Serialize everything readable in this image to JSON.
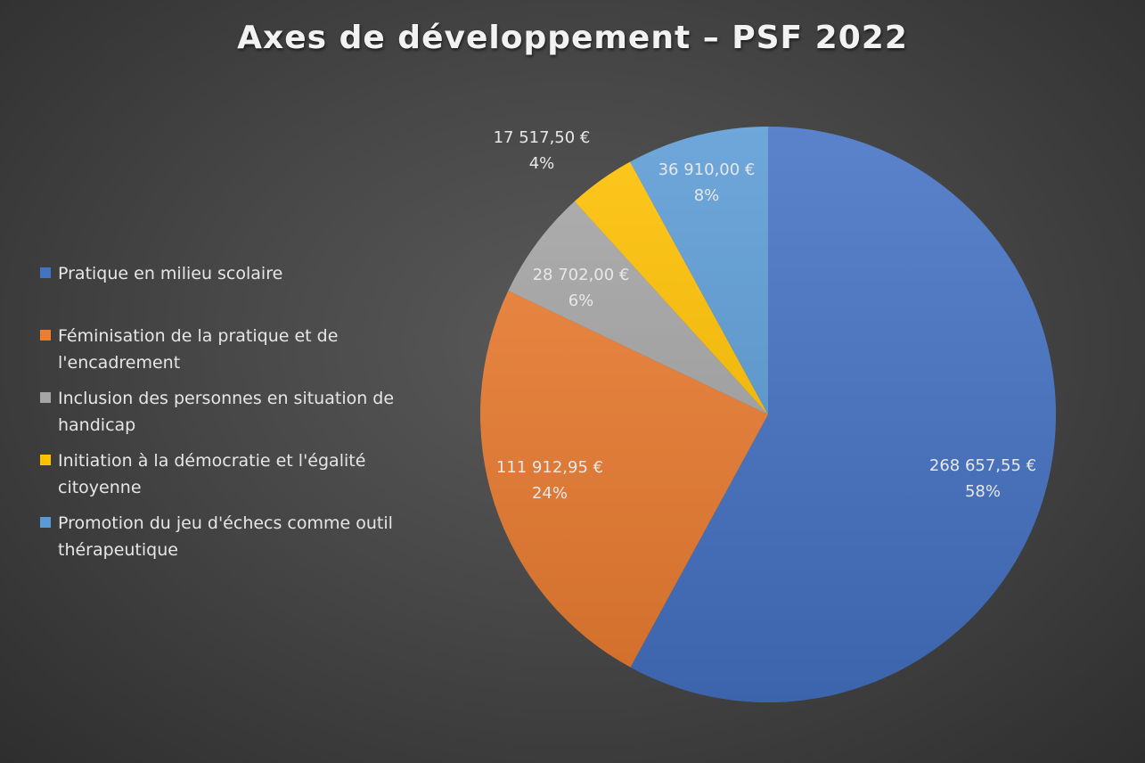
{
  "chart_data": {
    "type": "pie",
    "title": "Axes de développement – PSF 2022",
    "legend_position": "left",
    "slices": [
      {
        "name": "Pratique en milieu scolaire",
        "value": 268657.55,
        "value_label": "268 657,55 €",
        "percent_label": "58%",
        "color": "#4472c4"
      },
      {
        "name": "Féminisation de la pratique et de l'encadrement",
        "value": 111912.95,
        "value_label": "111 912,95 €",
        "percent_label": "24%",
        "color": "#ed7d31"
      },
      {
        "name": "Inclusion des personnes en situation de handicap",
        "value": 28702.0,
        "value_label": "28 702,00 €",
        "percent_label": "6%",
        "color": "#a5a5a5"
      },
      {
        "name": "Initiation à la démocratie et l'égalité citoyenne",
        "value": 17517.5,
        "value_label": "17 517,50 €",
        "percent_label": "4%",
        "color": "#ffc000"
      },
      {
        "name": "Promotion du jeu d'échecs comme outil thérapeutique",
        "value": 36910.0,
        "value_label": "36 910,00 €",
        "percent_label": "8%",
        "color": "#5b9bd5"
      }
    ]
  }
}
